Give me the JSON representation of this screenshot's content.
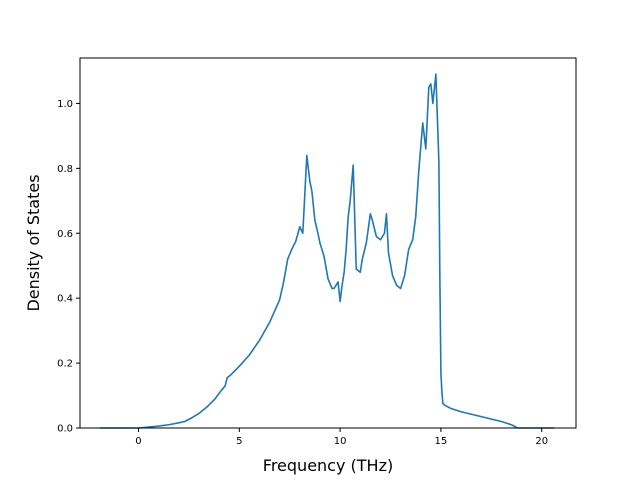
{
  "chart_data": {
    "type": "line",
    "title": "",
    "xlabel": "Frequency (THz)",
    "ylabel": "Density of States",
    "xlim": [
      -2.9,
      21.7
    ],
    "ylim": [
      0.0,
      1.14
    ],
    "xticks": [
      0,
      5,
      10,
      15,
      20
    ],
    "yticks": [
      0.0,
      0.2,
      0.4,
      0.6,
      0.8,
      1.0
    ],
    "xtick_labels": [
      "0",
      "5",
      "10",
      "15",
      "20"
    ],
    "ytick_labels": [
      "0.0",
      "0.2",
      "0.4",
      "0.6",
      "0.8",
      "1.0"
    ],
    "grid": false,
    "legend": "none",
    "series": [
      {
        "color": "#1f77b4",
        "x": [
          -1.9,
          -1.0,
          0.0,
          0.5,
          1.0,
          1.5,
          2.0,
          2.3,
          2.6,
          3.0,
          3.4,
          3.8,
          4.1,
          4.3,
          4.4,
          4.6,
          5.0,
          5.5,
          6.0,
          6.5,
          7.0,
          7.2,
          7.4,
          7.6,
          7.8,
          8.0,
          8.15,
          8.35,
          8.5,
          8.6,
          8.75,
          8.9,
          9.0,
          9.2,
          9.4,
          9.6,
          9.7,
          9.9,
          10.0,
          10.1,
          10.2,
          10.3,
          10.4,
          10.5,
          10.65,
          10.8,
          11.0,
          11.1,
          11.3,
          11.5,
          11.6,
          11.8,
          12.0,
          12.2,
          12.3,
          12.4,
          12.6,
          12.8,
          13.0,
          13.2,
          13.4,
          13.6,
          13.75,
          13.9,
          14.1,
          14.25,
          14.4,
          14.5,
          14.6,
          14.75,
          14.9,
          14.95,
          15.0,
          15.05,
          15.1,
          15.2,
          15.5,
          16.0,
          17.0,
          18.0,
          18.5,
          18.8,
          19.5,
          20.0,
          20.6
        ],
        "y": [
          0.0,
          0.0,
          0.0,
          0.003,
          0.006,
          0.01,
          0.016,
          0.02,
          0.03,
          0.045,
          0.065,
          0.09,
          0.115,
          0.13,
          0.155,
          0.165,
          0.19,
          0.225,
          0.27,
          0.325,
          0.395,
          0.45,
          0.52,
          0.55,
          0.575,
          0.62,
          0.6,
          0.84,
          0.76,
          0.73,
          0.64,
          0.6,
          0.57,
          0.53,
          0.46,
          0.43,
          0.43,
          0.45,
          0.39,
          0.44,
          0.48,
          0.55,
          0.65,
          0.7,
          0.81,
          0.49,
          0.48,
          0.52,
          0.57,
          0.66,
          0.64,
          0.59,
          0.58,
          0.6,
          0.66,
          0.54,
          0.47,
          0.44,
          0.43,
          0.47,
          0.55,
          0.58,
          0.65,
          0.79,
          0.94,
          0.86,
          1.05,
          1.06,
          1.0,
          1.09,
          0.82,
          0.45,
          0.17,
          0.11,
          0.075,
          0.07,
          0.06,
          0.05,
          0.035,
          0.02,
          0.01,
          0.0,
          0.0,
          0.0,
          0.0
        ]
      }
    ]
  }
}
